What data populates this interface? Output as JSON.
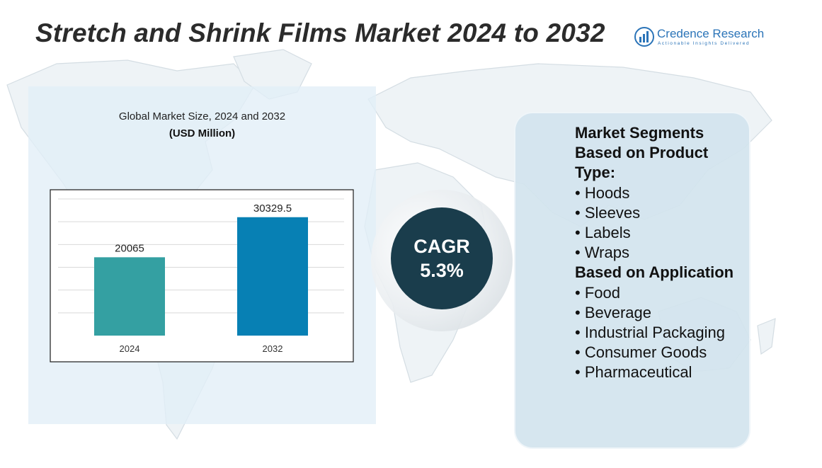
{
  "title": "Stretch and Shrink Films Market 2024 to 2032",
  "logo": {
    "name": "Credence Research",
    "tagline": "Actionable Insights Delivered"
  },
  "chart_data": {
    "type": "bar",
    "title": "Global Market Size, 2024 and 2032",
    "unit": "(USD Million)",
    "categories": [
      "2024",
      "2032"
    ],
    "values": [
      20065,
      30329.5
    ],
    "value_labels": [
      "20065",
      "30329.5"
    ],
    "colors": [
      "#34a0a2",
      "#0780b4"
    ],
    "ylim": [
      0,
      35000
    ],
    "grid": true
  },
  "cagr": {
    "label": "CAGR",
    "value": "5.3%"
  },
  "segments": {
    "heading": "Market Segments",
    "groups": [
      {
        "title": "Based on Product Type:",
        "items": [
          "• Hoods",
          "• Sleeves",
          "• Labels",
          "• Wraps"
        ]
      },
      {
        "title": "Based on Application",
        "items": [
          "• Food",
          "• Beverage",
          "• Industrial Packaging",
          "• Consumer Goods",
          "• Pharmaceutical"
        ]
      }
    ]
  }
}
